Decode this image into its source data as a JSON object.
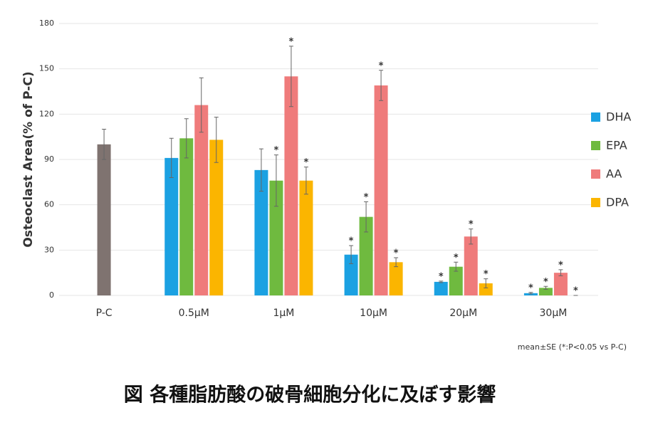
{
  "chart_data": {
    "type": "bar",
    "y_label": "Osteoclast Area(% of P-C)",
    "categories": [
      "P-C",
      "0.5μM",
      "1μM",
      "10μM",
      "20μM",
      "30μM"
    ],
    "control_value": 100,
    "control_error": 10,
    "control_color": "#7f7370",
    "series": [
      {
        "name": "DHA",
        "color": "#1ba1e2",
        "values": [
          null,
          91,
          83,
          27,
          9,
          1.5
        ],
        "errors": [
          null,
          13,
          14,
          6,
          0.5,
          0.5
        ],
        "significant": [
          false,
          false,
          false,
          true,
          true,
          true
        ]
      },
      {
        "name": "EPA",
        "color": "#6fba3f",
        "values": [
          null,
          104,
          76,
          52,
          19,
          5
        ],
        "errors": [
          null,
          13,
          17,
          10,
          3,
          1
        ],
        "significant": [
          false,
          false,
          true,
          true,
          true,
          true
        ]
      },
      {
        "name": "AA",
        "color": "#ef7b7b",
        "values": [
          null,
          126,
          145,
          139,
          39,
          15
        ],
        "errors": [
          null,
          18,
          20,
          10,
          5,
          2
        ],
        "significant": [
          false,
          false,
          true,
          true,
          true,
          true
        ]
      },
      {
        "name": "DPA",
        "color": "#fbb500",
        "values": [
          null,
          103,
          76,
          22,
          8,
          0
        ],
        "errors": [
          null,
          15,
          9,
          3,
          3,
          0
        ],
        "significant": [
          false,
          false,
          true,
          true,
          true,
          true
        ]
      }
    ],
    "significance_label": "*",
    "ylim": [
      0,
      180
    ],
    "yticks": [
      0,
      30,
      60,
      90,
      120,
      150,
      180
    ],
    "grid": true,
    "legend": "right",
    "note": "mean±SE (*:P<0.05 vs P-C)",
    "caption": "図 各種脂肪酸の破骨細胞分化に及ぼす影響"
  }
}
